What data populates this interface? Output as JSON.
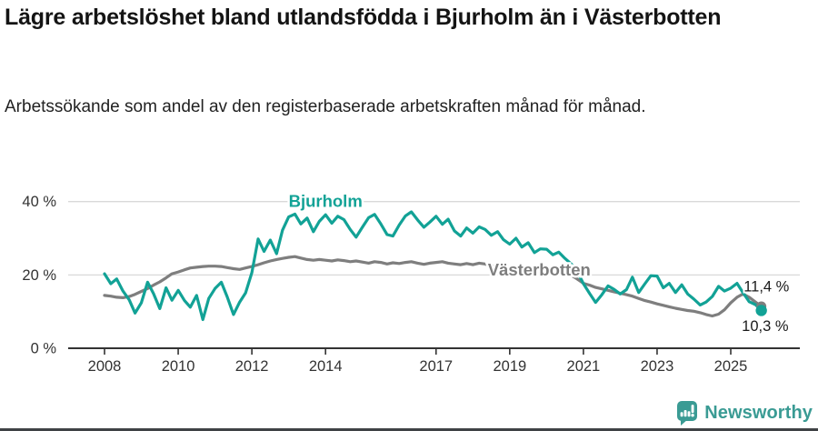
{
  "header": {
    "title": "Lägre arbetslöshet bland utlandsfödda i Bjurholm än i Västerbotten",
    "subtitle": "Arbetssökande som andel av den registerbaserade arbetskraften månad för månad."
  },
  "footer": {
    "brand": "Newsworthy",
    "brand_color": "#3A9B94",
    "logo_icon": "bar-chart-speech-bubble-icon"
  },
  "chart_data": {
    "type": "line",
    "title": "",
    "xlabel": "",
    "ylabel": "",
    "x_unit": "year (fractional years, monthly cadence)",
    "y_unit": "percent",
    "xlim": [
      2007.0,
      2026.3
    ],
    "ylim": [
      0,
      44
    ],
    "grid": "horizontal",
    "grid_color": "#D9D9D9",
    "axis_color": "#333333",
    "y_ticks": [
      0,
      20,
      40
    ],
    "y_tick_labels": [
      "0 %",
      "20 %",
      "40 %"
    ],
    "x_ticks": [
      2008,
      2010,
      2012,
      2014,
      2017,
      2019,
      2021,
      2023,
      2025
    ],
    "x_tick_labels": [
      "2008",
      "2010",
      "2012",
      "2014",
      "2017",
      "2019",
      "2021",
      "2023",
      "2025"
    ],
    "legend_position": "inline-labels",
    "x": [
      2008,
      2008.17,
      2008.33,
      2008.5,
      2008.67,
      2008.83,
      2009,
      2009.17,
      2009.33,
      2009.5,
      2009.67,
      2009.83,
      2010,
      2010.17,
      2010.33,
      2010.5,
      2010.67,
      2010.83,
      2011,
      2011.17,
      2011.33,
      2011.5,
      2011.67,
      2011.83,
      2012,
      2012.17,
      2012.33,
      2012.5,
      2012.67,
      2012.83,
      2013,
      2013.17,
      2013.33,
      2013.5,
      2013.67,
      2013.83,
      2014,
      2014.17,
      2014.33,
      2014.5,
      2014.67,
      2014.83,
      2015,
      2015.17,
      2015.33,
      2015.5,
      2015.67,
      2015.83,
      2016,
      2016.17,
      2016.33,
      2016.5,
      2016.67,
      2016.83,
      2017,
      2017.17,
      2017.33,
      2017.5,
      2017.67,
      2017.83,
      2018,
      2018.17,
      2018.33,
      2018.5,
      2018.67,
      2018.83,
      2019,
      2019.17,
      2019.33,
      2019.5,
      2019.67,
      2019.83,
      2020,
      2020.17,
      2020.33,
      2020.5,
      2020.67,
      2020.83,
      2021,
      2021.17,
      2021.33,
      2021.5,
      2021.67,
      2021.83,
      2022,
      2022.17,
      2022.33,
      2022.5,
      2022.67,
      2022.83,
      2023,
      2023.17,
      2023.33,
      2023.5,
      2023.67,
      2023.83,
      2024,
      2024.17,
      2024.33,
      2024.5,
      2024.67,
      2024.83,
      2025,
      2025.17,
      2025.33,
      2025.5,
      2025.67,
      2025.83
    ],
    "series": [
      {
        "name": "Bjurholm",
        "color": "#12A296",
        "end_value": 10.3,
        "end_label": "10,3 %",
        "label_pos": {
          "year": 2014.0,
          "value": 40.0
        },
        "values": [
          20.3,
          17.6,
          18.9,
          15.6,
          13.2,
          9.6,
          12.4,
          18,
          14.9,
          10.8,
          16.5,
          13.1,
          15.8,
          13,
          11.2,
          14.4,
          7.8,
          13.6,
          16.3,
          18,
          14,
          9.2,
          12.6,
          15.1,
          20.6,
          29.8,
          26.4,
          29.5,
          25.8,
          32.2,
          35.8,
          36.6,
          33.9,
          35.5,
          31.8,
          34.6,
          36.4,
          34.1,
          36,
          35.1,
          32.4,
          30.3,
          33,
          35.6,
          36.5,
          33.9,
          31,
          30.6,
          33.6,
          36.1,
          37.2,
          35,
          33,
          34.4,
          36,
          33.8,
          35.2,
          32,
          30.6,
          32.8,
          31.4,
          33.1,
          32.4,
          30.8,
          31.8,
          29.6,
          28.4,
          30,
          27.6,
          28.8,
          26.1,
          27.1,
          27,
          25.5,
          26.2,
          24.5,
          23,
          21,
          17.6,
          14.9,
          12.5,
          14.6,
          17,
          16.1,
          14.8,
          16,
          19.4,
          15.2,
          17.6,
          19.8,
          19.7,
          16.5,
          17.7,
          15.2,
          17.3,
          14.8,
          13.4,
          11.8,
          12.6,
          14.1,
          16.9,
          15.6,
          16.4,
          17.7,
          15.2,
          12.7,
          11.9,
          10.3
        ]
      },
      {
        "name": "Västerbotten",
        "color": "#7E7E7E",
        "end_value": 11.4,
        "end_label": "11,4 %",
        "label_pos": {
          "year": 2019.8,
          "value": 21.3
        },
        "values": [
          14.4,
          14.2,
          13.9,
          13.8,
          14.1,
          14.7,
          15.5,
          16.3,
          17.2,
          18.1,
          19.2,
          20.3,
          20.8,
          21.4,
          21.9,
          22.1,
          22.3,
          22.4,
          22.4,
          22.3,
          22,
          21.7,
          21.5,
          21.9,
          22.3,
          22.8,
          23.3,
          23.8,
          24.2,
          24.5,
          24.8,
          25,
          24.6,
          24.2,
          24,
          24.2,
          24,
          23.8,
          24.1,
          23.9,
          23.6,
          23.8,
          23.5,
          23.2,
          23.6,
          23.4,
          23,
          23.3,
          23.1,
          23.4,
          23.6,
          23.2,
          22.9,
          23.2,
          23.4,
          23.6,
          23.2,
          23,
          22.8,
          23.1,
          22.8,
          23.2,
          23,
          22.5,
          22.2,
          22.4,
          22.1,
          21.8,
          21.6,
          21.4,
          21.2,
          21,
          20.8,
          20.9,
          21.1,
          20.7,
          19.9,
          18.9,
          17.7,
          17.2,
          16.6,
          16.2,
          15.8,
          15.4,
          15,
          14.6,
          14.2,
          13.6,
          13,
          12.6,
          12.1,
          11.7,
          11.3,
          10.9,
          10.6,
          10.3,
          10.1,
          9.7,
          9.2,
          8.8,
          9.3,
          10.5,
          12.4,
          13.9,
          14.8,
          13.9,
          12.6,
          11.4
        ]
      }
    ],
    "annotations": [
      {
        "text": "11,4 %",
        "year": 2025.35,
        "value": 16.8,
        "series": "Västerbotten"
      },
      {
        "text": "10,3 %",
        "year": 2025.3,
        "value": 5.9,
        "series": "Bjurholm"
      }
    ]
  }
}
